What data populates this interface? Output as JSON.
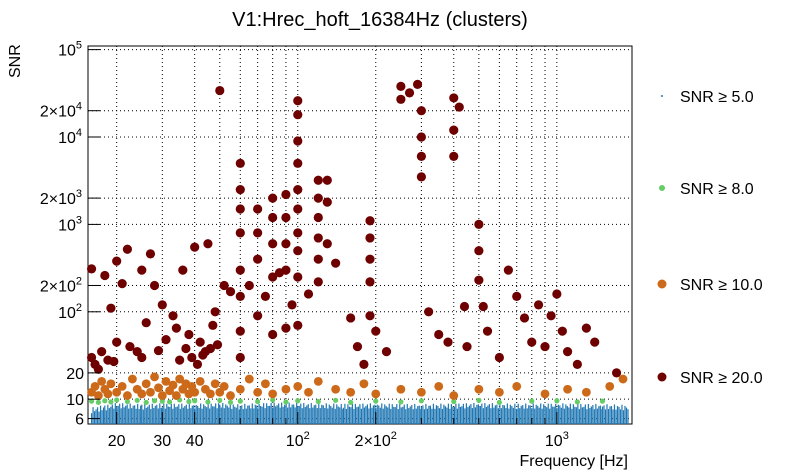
{
  "chart_data": {
    "type": "scatter",
    "title": "V1:Hrec_hoft_16384Hz (clusters)",
    "xlabel": "Frequency [Hz]",
    "ylabel": "SNR",
    "xscale": "log",
    "yscale": "log",
    "xlim": [
      15.5,
      1950
    ],
    "ylim": [
      5.2,
      110000
    ],
    "grid": true,
    "x_ticks": [
      {
        "v": 20,
        "label": "20"
      },
      {
        "v": 30,
        "label": "30"
      },
      {
        "v": 40,
        "label": "40"
      },
      {
        "v": 100,
        "label": "10",
        "sup": "2"
      },
      {
        "v": 200,
        "label": "2×10",
        "sup": "2"
      },
      {
        "v": 1000,
        "label": "10",
        "sup": "3"
      }
    ],
    "y_ticks": [
      {
        "v": 6,
        "label": "6"
      },
      {
        "v": 10,
        "label": "10"
      },
      {
        "v": 20,
        "label": "20"
      },
      {
        "v": 100,
        "label": "10",
        "sup": "2"
      },
      {
        "v": 200,
        "label": "2×10",
        "sup": "2"
      },
      {
        "v": 1000,
        "label": "10",
        "sup": "3"
      },
      {
        "v": 2000,
        "label": "2×10",
        "sup": "3"
      },
      {
        "v": 10000,
        "label": "10",
        "sup": "4"
      },
      {
        "v": 20000,
        "label": "2×10",
        "sup": "4"
      },
      {
        "v": 100000,
        "label": "10",
        "sup": "5"
      }
    ],
    "legend_position": "right",
    "series": [
      {
        "name": "SNR ≥ 5.0",
        "color": "#1f77b4",
        "marker": "bar",
        "points": [
          [
            16,
            7.5
          ],
          [
            18,
            8
          ],
          [
            20,
            8.5
          ],
          [
            25,
            8.2
          ],
          [
            30,
            8.4
          ],
          [
            40,
            8.3
          ],
          [
            50,
            8.5
          ],
          [
            60,
            8.2
          ],
          [
            70,
            8.4
          ],
          [
            80,
            8.6
          ],
          [
            100,
            8.5
          ],
          [
            150,
            8.3
          ],
          [
            200,
            8.4
          ],
          [
            300,
            8.2
          ],
          [
            500,
            8.5
          ],
          [
            700,
            8.3
          ],
          [
            1000,
            8.4
          ],
          [
            1500,
            8.2
          ],
          [
            1900,
            8
          ]
        ]
      },
      {
        "name": "SNR ≥ 8.0",
        "color": "#66cc66",
        "marker": "dot",
        "points": [
          [
            16,
            9.5
          ],
          [
            17,
            9.2
          ],
          [
            18,
            9.6
          ],
          [
            19,
            9.3
          ],
          [
            20,
            9.8
          ],
          [
            22,
            9.4
          ],
          [
            24,
            9.7
          ],
          [
            26,
            9.2
          ],
          [
            28,
            9.6
          ],
          [
            30,
            9.5
          ],
          [
            32,
            9.3
          ],
          [
            35,
            9.8
          ],
          [
            38,
            9.4
          ],
          [
            40,
            9.6
          ],
          [
            45,
            9.3
          ],
          [
            50,
            9.7
          ],
          [
            55,
            9.2
          ],
          [
            60,
            9.5
          ],
          [
            70,
            9.4
          ],
          [
            80,
            9.8
          ],
          [
            90,
            9.3
          ],
          [
            100,
            9.6
          ],
          [
            120,
            9.4
          ],
          [
            140,
            9.7
          ],
          [
            160,
            9.2
          ],
          [
            200,
            9.5
          ],
          [
            250,
            9.3
          ],
          [
            300,
            9.6
          ],
          [
            400,
            9.4
          ],
          [
            500,
            9.7
          ],
          [
            600,
            9.2
          ],
          [
            800,
            9.5
          ],
          [
            1000,
            9.6
          ],
          [
            1200,
            9.3
          ],
          [
            1500,
            9.5
          ]
        ]
      },
      {
        "name": "SNR ≥ 10.0",
        "color": "#cc6a1a",
        "marker": "dot",
        "points": [
          [
            16,
            12
          ],
          [
            16.5,
            14
          ],
          [
            17,
            11
          ],
          [
            17.5,
            16
          ],
          [
            18,
            13
          ],
          [
            18.5,
            11.5
          ],
          [
            19,
            15
          ],
          [
            20,
            12
          ],
          [
            21,
            14
          ],
          [
            22,
            11
          ],
          [
            23,
            17
          ],
          [
            24,
            13
          ],
          [
            25,
            11.5
          ],
          [
            26,
            15
          ],
          [
            27,
            12
          ],
          [
            28,
            18
          ],
          [
            29,
            13.5
          ],
          [
            30,
            11
          ],
          [
            31,
            16
          ],
          [
            32,
            12.5
          ],
          [
            33,
            14.5
          ],
          [
            34,
            11
          ],
          [
            35,
            17
          ],
          [
            36,
            13
          ],
          [
            37,
            15
          ],
          [
            38,
            11.5
          ],
          [
            39,
            14
          ],
          [
            40,
            12
          ],
          [
            42,
            16
          ],
          [
            44,
            13
          ],
          [
            46,
            11.5
          ],
          [
            48,
            15
          ],
          [
            50,
            12
          ],
          [
            52,
            14
          ],
          [
            55,
            11
          ],
          [
            60,
            13
          ],
          [
            65,
            17
          ],
          [
            70,
            12
          ],
          [
            75,
            15
          ],
          [
            80,
            11.5
          ],
          [
            90,
            13
          ],
          [
            100,
            14
          ],
          [
            110,
            12
          ],
          [
            120,
            16
          ],
          [
            140,
            13
          ],
          [
            160,
            12
          ],
          [
            180,
            15
          ],
          [
            200,
            11.5
          ],
          [
            250,
            13
          ],
          [
            300,
            12
          ],
          [
            350,
            14
          ],
          [
            400,
            11
          ],
          [
            500,
            13
          ],
          [
            600,
            12
          ],
          [
            700,
            14
          ],
          [
            900,
            11.5
          ],
          [
            1100,
            13
          ],
          [
            1300,
            12
          ],
          [
            1600,
            14
          ],
          [
            1800,
            17
          ]
        ]
      },
      {
        "name": "SNR ≥ 20.0",
        "color": "#6e0000",
        "marker": "dot",
        "points": [
          [
            16,
            310
          ],
          [
            16,
            30
          ],
          [
            16.5,
            25
          ],
          [
            17,
            22
          ],
          [
            17.5,
            35
          ],
          [
            18,
            260
          ],
          [
            18.5,
            28
          ],
          [
            19,
            110
          ],
          [
            19.5,
            27
          ],
          [
            20,
            380
          ],
          [
            20,
            45
          ],
          [
            21,
            210
          ],
          [
            22,
            520
          ],
          [
            22.5,
            40
          ],
          [
            24,
            35
          ],
          [
            25,
            300
          ],
          [
            25,
            30
          ],
          [
            26,
            75
          ],
          [
            27,
            460
          ],
          [
            28,
            200
          ],
          [
            29,
            36
          ],
          [
            30,
            120
          ],
          [
            31,
            48
          ],
          [
            33,
            90
          ],
          [
            34,
            65
          ],
          [
            35,
            28
          ],
          [
            36,
            300
          ],
          [
            37,
            38
          ],
          [
            38,
            55
          ],
          [
            39,
            30
          ],
          [
            40,
            550
          ],
          [
            41,
            25
          ],
          [
            42,
            45
          ],
          [
            43,
            32
          ],
          [
            44,
            35
          ],
          [
            45,
            600
          ],
          [
            46,
            38
          ],
          [
            47,
            70
          ],
          [
            48,
            100
          ],
          [
            49,
            42
          ],
          [
            50,
            34000
          ],
          [
            52,
            200
          ],
          [
            55,
            170
          ],
          [
            60,
            5000
          ],
          [
            60,
            2500
          ],
          [
            60,
            1500
          ],
          [
            60,
            800
          ],
          [
            60,
            300
          ],
          [
            60,
            150
          ],
          [
            60,
            60
          ],
          [
            60,
            30
          ],
          [
            65,
            200
          ],
          [
            70,
            1500
          ],
          [
            70,
            800
          ],
          [
            70,
            400
          ],
          [
            70,
            90
          ],
          [
            75,
            150
          ],
          [
            80,
            2000
          ],
          [
            80,
            1200
          ],
          [
            80,
            600
          ],
          [
            80,
            250
          ],
          [
            80,
            55
          ],
          [
            85,
            280
          ],
          [
            90,
            2200
          ],
          [
            90,
            1200
          ],
          [
            90,
            600
          ],
          [
            90,
            300
          ],
          [
            90,
            65
          ],
          [
            95,
            120
          ],
          [
            100,
            26000
          ],
          [
            100,
            18000
          ],
          [
            100,
            9000
          ],
          [
            100,
            5000
          ],
          [
            100,
            2500
          ],
          [
            100,
            1500
          ],
          [
            100,
            800
          ],
          [
            100,
            500
          ],
          [
            100,
            250
          ],
          [
            100,
            70
          ],
          [
            110,
            160
          ],
          [
            120,
            3200
          ],
          [
            120,
            2000
          ],
          [
            120,
            1200
          ],
          [
            120,
            700
          ],
          [
            120,
            400
          ],
          [
            120,
            220
          ],
          [
            130,
            3200
          ],
          [
            130,
            1800
          ],
          [
            130,
            600
          ],
          [
            140,
            360
          ],
          [
            160,
            85
          ],
          [
            170,
            40
          ],
          [
            180,
            25
          ],
          [
            190,
            1100
          ],
          [
            190,
            700
          ],
          [
            190,
            400
          ],
          [
            190,
            220
          ],
          [
            190,
            90
          ],
          [
            200,
            60
          ],
          [
            220,
            35
          ],
          [
            250,
            38000
          ],
          [
            250,
            27000
          ],
          [
            270,
            32000
          ],
          [
            290,
            40000
          ],
          [
            300,
            20000
          ],
          [
            300,
            10000
          ],
          [
            300,
            6000
          ],
          [
            300,
            3500
          ],
          [
            320,
            100
          ],
          [
            350,
            55
          ],
          [
            380,
            45
          ],
          [
            400,
            28000
          ],
          [
            400,
            12000
          ],
          [
            400,
            6000
          ],
          [
            420,
            22000
          ],
          [
            440,
            115
          ],
          [
            450,
            40
          ],
          [
            500,
            1000
          ],
          [
            500,
            500
          ],
          [
            500,
            230
          ],
          [
            520,
            115
          ],
          [
            540,
            60
          ],
          [
            600,
            30
          ],
          [
            650,
            300
          ],
          [
            700,
            150
          ],
          [
            750,
            85
          ],
          [
            800,
            45
          ],
          [
            850,
            120
          ],
          [
            900,
            40
          ],
          [
            950,
            90
          ],
          [
            1000,
            160
          ],
          [
            1050,
            60
          ],
          [
            1100,
            35
          ],
          [
            1200,
            25
          ],
          [
            1300,
            65
          ],
          [
            1400,
            45
          ],
          [
            1700,
            20
          ]
        ]
      }
    ]
  }
}
